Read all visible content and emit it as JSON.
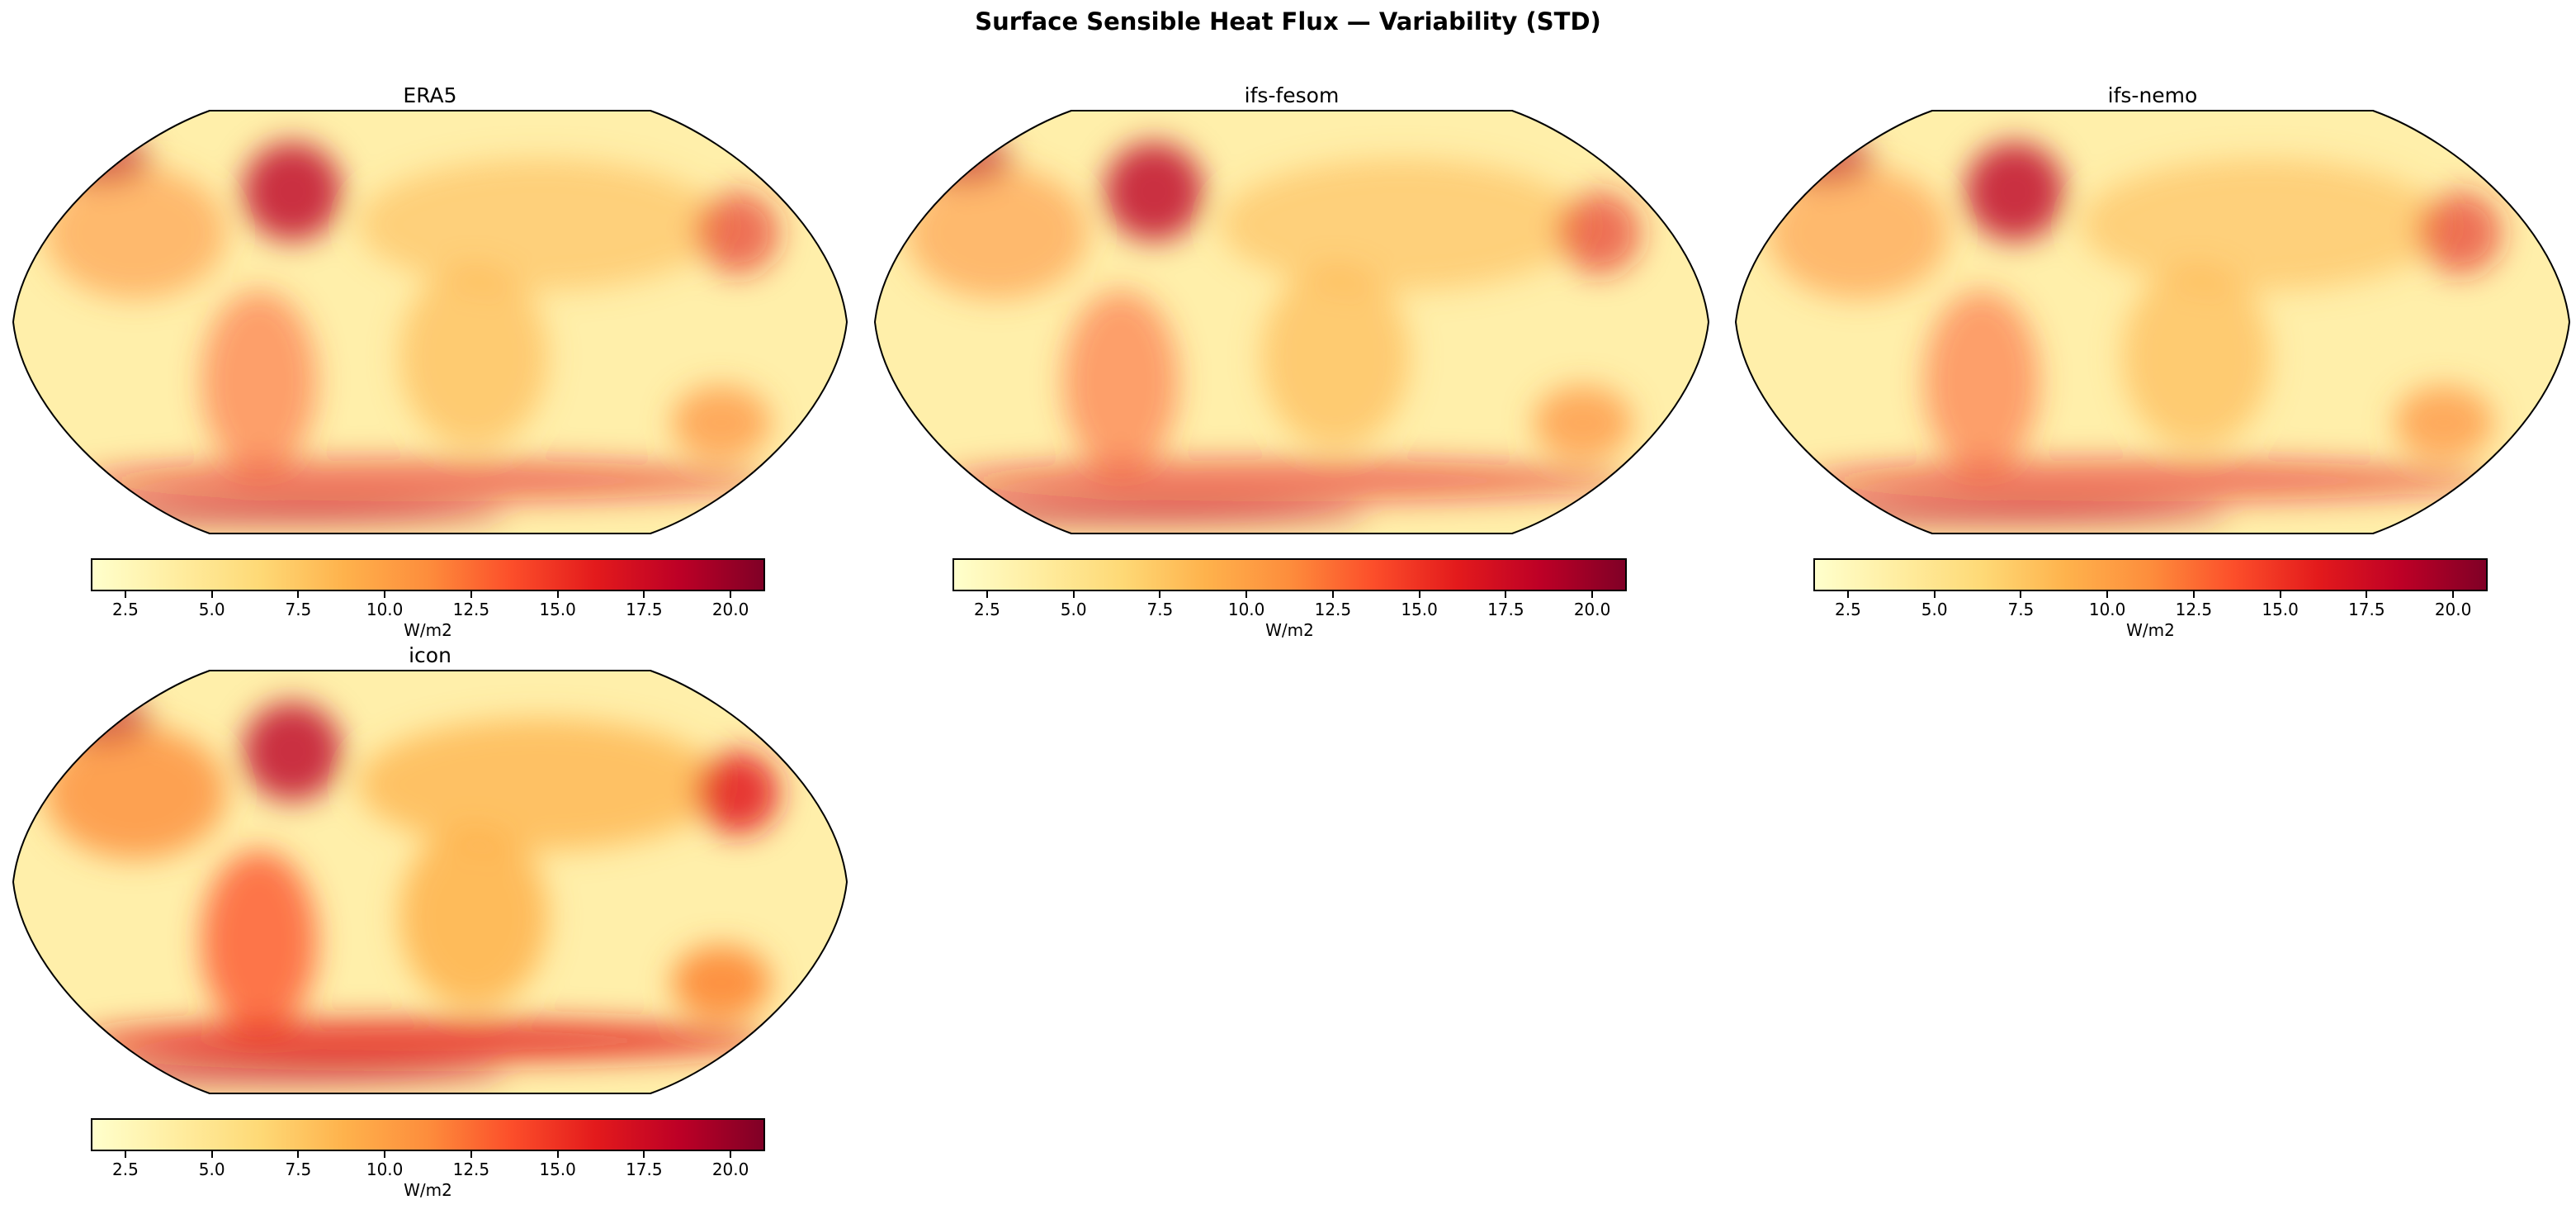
{
  "chart_data": {
    "type": "heatmap",
    "title": "Surface Sensible Heat Flux — Variability (STD)",
    "colormap": "YlOrRd",
    "colors": [
      "#ffffcc",
      "#ffeda0",
      "#fed976",
      "#feb24c",
      "#fd8d3c",
      "#fc4e2a",
      "#e31a1c",
      "#bd0026",
      "#800026"
    ],
    "projection": "Robinson",
    "panels": [
      {
        "title": "ERA5",
        "colorbar": {
          "label": "W/m2",
          "vmin": 1.5,
          "vmax": 21,
          "ticks": [
            "2.5",
            "5.0",
            "7.5",
            "10.0",
            "12.5",
            "15.0",
            "17.5",
            "20.0"
          ]
        }
      },
      {
        "title": "ifs-fesom",
        "colorbar": {
          "label": "W/m2",
          "vmin": 1.5,
          "vmax": 21,
          "ticks": [
            "2.5",
            "5.0",
            "7.5",
            "10.0",
            "12.5",
            "15.0",
            "17.5",
            "20.0"
          ]
        }
      },
      {
        "title": "ifs-nemo",
        "colorbar": {
          "label": "W/m2",
          "vmin": 1.5,
          "vmax": 21,
          "ticks": [
            "2.5",
            "5.0",
            "7.5",
            "10.0",
            "12.5",
            "15.0",
            "17.5",
            "20.0"
          ]
        }
      },
      {
        "title": "icon",
        "colorbar": {
          "label": "W/m2",
          "vmin": 1.5,
          "vmax": 21,
          "ticks": [
            "2.5",
            "5.0",
            "7.5",
            "10.0",
            "12.5",
            "15.0",
            "17.5",
            "20.0"
          ]
        }
      }
    ]
  }
}
